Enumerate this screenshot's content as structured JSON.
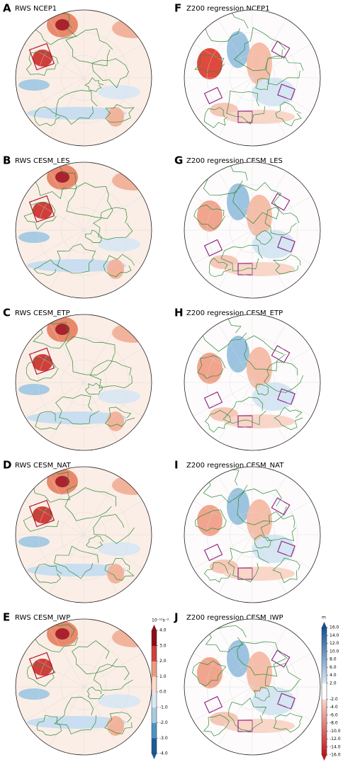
{
  "panels": [
    {
      "letter": "A",
      "title": "RWS NCEP1"
    },
    {
      "letter": "B",
      "title": "RWS CESM_LES"
    },
    {
      "letter": "C",
      "title": "RWS CESM_ETP"
    },
    {
      "letter": "D",
      "title": "RWS CESM_NAT"
    },
    {
      "letter": "E",
      "title": "RWS CESM_IWP"
    },
    {
      "letter": "F",
      "title": "Z200 regression NCEP1"
    },
    {
      "letter": "G",
      "title": "Z200 regression CESM_LES"
    },
    {
      "letter": "H",
      "title": "Z200 regression CESM_ETP"
    },
    {
      "letter": "I",
      "title": "Z200 regression CESM_NAT"
    },
    {
      "letter": "J",
      "title": "Z200 regression CESM_IWP"
    }
  ],
  "colorbars": {
    "rws": {
      "unit": "10⁻¹¹s⁻²",
      "lim": [
        -4,
        4
      ],
      "ticks": [
        {
          "value": 4,
          "label": "4.0"
        },
        {
          "value": 3,
          "label": "3.0"
        },
        {
          "value": 2,
          "label": "2.0"
        },
        {
          "value": 1,
          "label": "1.0"
        },
        {
          "value": 0,
          "label": "0.0"
        },
        {
          "value": -1,
          "label": "-1.0"
        },
        {
          "value": -2,
          "label": "-2.0"
        },
        {
          "value": -3,
          "label": "-3.0"
        },
        {
          "value": -4,
          "label": "-4.0"
        }
      ]
    },
    "z200": {
      "unit": "m",
      "lim": [
        -16,
        16
      ],
      "ticks": [
        {
          "value": 16,
          "label": "16.0"
        },
        {
          "value": 14,
          "label": "14.0"
        },
        {
          "value": 12,
          "label": "12.0"
        },
        {
          "value": 10,
          "label": "10.0"
        },
        {
          "value": 8,
          "label": "8.0"
        },
        {
          "value": 6,
          "label": "6.0"
        },
        {
          "value": 4,
          "label": "4.0"
        },
        {
          "value": 2,
          "label": "2.0"
        },
        {
          "value": -2,
          "label": "-2.0"
        },
        {
          "value": -4,
          "label": "-4.0"
        },
        {
          "value": -6,
          "label": "-6.0"
        },
        {
          "value": -8,
          "label": "-8.0"
        },
        {
          "value": -10,
          "label": "-10.0"
        },
        {
          "value": -12,
          "label": "-12.0"
        },
        {
          "value": -14,
          "label": "-14.0"
        },
        {
          "value": -16,
          "label": "-16.0"
        }
      ]
    }
  }
}
